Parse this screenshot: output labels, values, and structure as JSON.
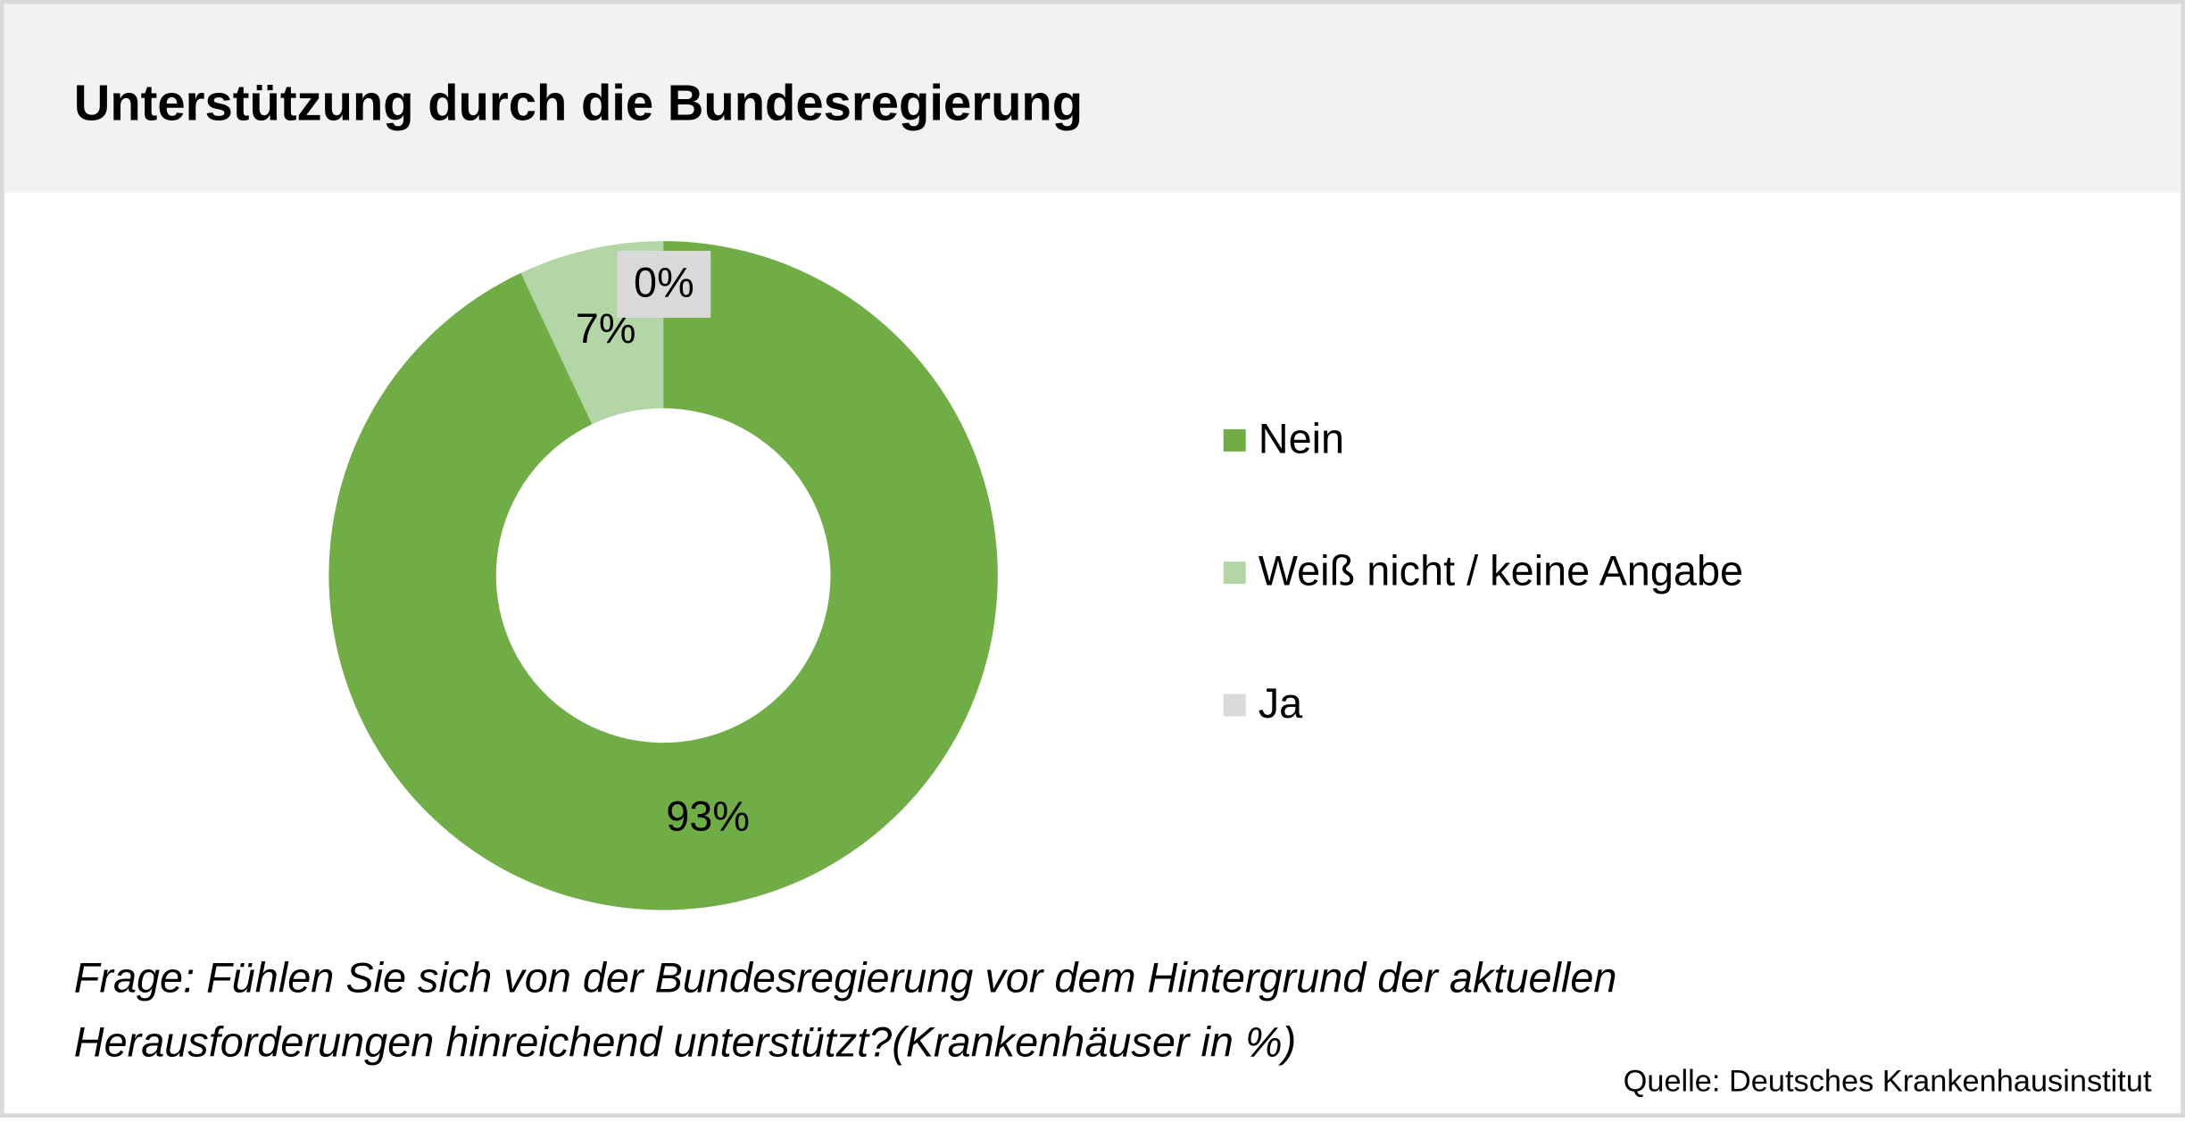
{
  "chart_data": {
    "type": "pie",
    "variant": "donut",
    "title": "Unterstützung durch die Bundesregierung",
    "categories": [
      "Nein",
      "Weiß nicht / keine Angabe",
      "Ja"
    ],
    "values": [
      93,
      7,
      0
    ],
    "data_labels": [
      "93%",
      "7%",
      "0%"
    ],
    "colors": [
      "#70ad47",
      "#b4d6a6",
      "#d9d9d9"
    ],
    "legend_position": "right"
  },
  "question": {
    "line1": "Frage: Fühlen Sie sich von der Bundesregierung vor dem Hintergrund der aktuellen",
    "line2": "Herausforderungen hinreichend unterstützt?(Krankenhäuser in %)"
  },
  "source": "Quelle: Deutsches Krankenhausinstitut"
}
